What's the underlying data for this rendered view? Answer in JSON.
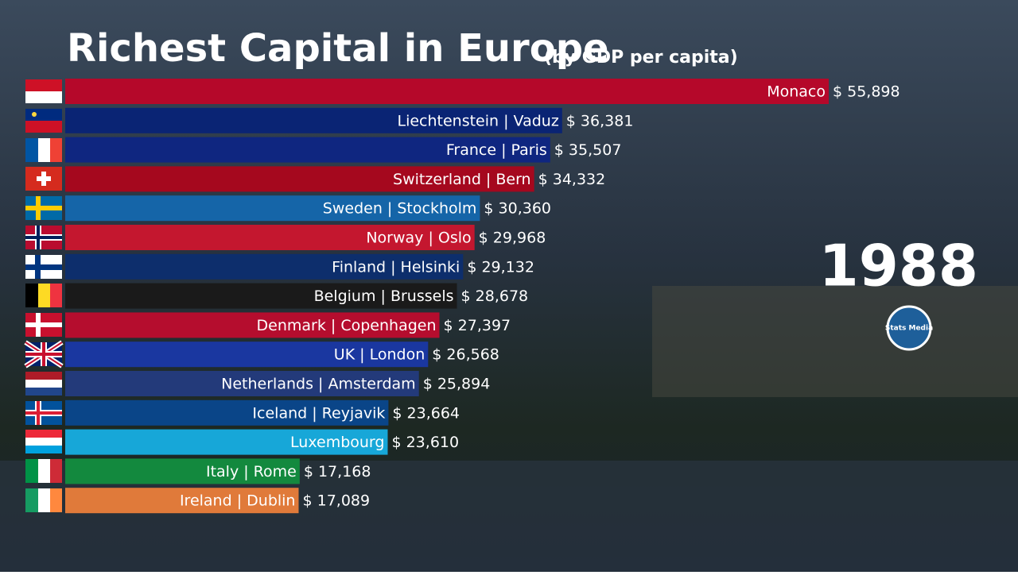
{
  "chart_data": {
    "type": "bar",
    "orientation": "horizontal",
    "title": "Richest Capital in Europe",
    "subtitle": "(by GDP per capita)",
    "year": "1988",
    "logo": "Stats Media",
    "categories": [
      "Monaco",
      "Liechtenstein | Vaduz",
      "France | Paris",
      "Switzerland | Bern",
      "Sweden | Stockholm",
      "Norway | Oslo",
      "Finland | Helsinki",
      "Belgium | Brussels",
      "Denmark | Copenhagen",
      "UK | London",
      "Netherlands | Amsterdam",
      "Iceland | Reyjavik",
      "Luxembourg",
      "Italy | Rome",
      "Ireland | Dublin"
    ],
    "values": [
      55898,
      36381,
      35507,
      34332,
      30360,
      29968,
      29132,
      28678,
      27397,
      26568,
      25894,
      23664,
      23610,
      17168,
      17089
    ],
    "value_labels": [
      "$ 55,898",
      "$ 36,381",
      "$ 35,507",
      "$ 34,332",
      "$ 30,360",
      "$ 29,968",
      "$ 29,132",
      "$ 28,678",
      "$ 27,397",
      "$ 26,568",
      "$ 25,894",
      "$ 23,664",
      "$ 23,610",
      "$ 17,168",
      "$ 17,089"
    ],
    "colors": [
      "#b5082a",
      "#0a2474",
      "#0f2680",
      "#a5081e",
      "#1565a8",
      "#c4172f",
      "#0d2e6c",
      "#1a1a1a",
      "#b50d2e",
      "#1a37a0",
      "#233a7a",
      "#0a4588",
      "#17a7d8",
      "#13893e",
      "#e07a3a"
    ]
  }
}
